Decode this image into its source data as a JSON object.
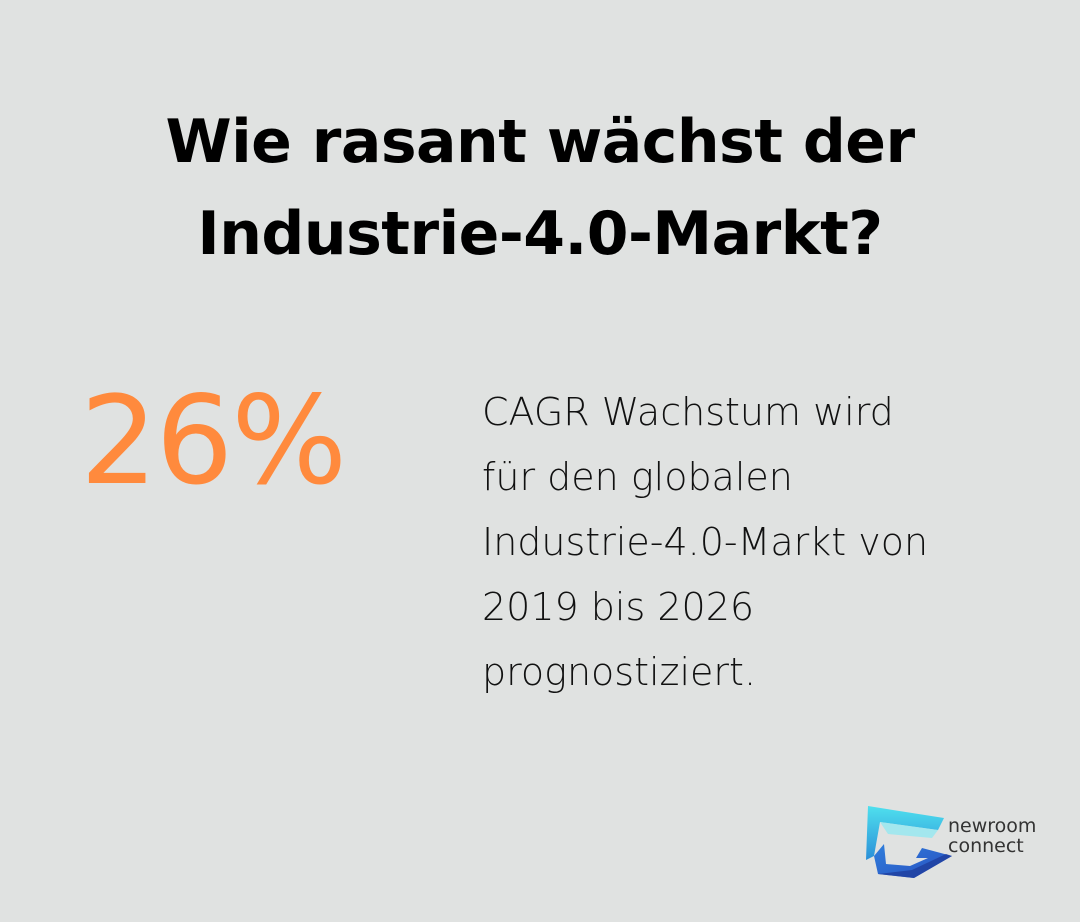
{
  "title": {
    "line1": "Wie rasant wächst der",
    "line2": "Industrie-4.0-Markt?"
  },
  "stat": {
    "value": "26%",
    "description_lines": [
      "CAGR Wachstum wird",
      "für den globalen",
      "Industrie-4.0-Markt von",
      "2019 bis 2026",
      "prognostiziert."
    ]
  },
  "logo": {
    "icon": "newroom-connect-logo-icon",
    "line1": "newroom",
    "line2": "connect"
  },
  "colors": {
    "background": "#e0e2e1",
    "accent": "#ff8a3d",
    "text": "#000000",
    "logo_cyan": "#3fd3e6",
    "logo_blue": "#2b57c8"
  }
}
